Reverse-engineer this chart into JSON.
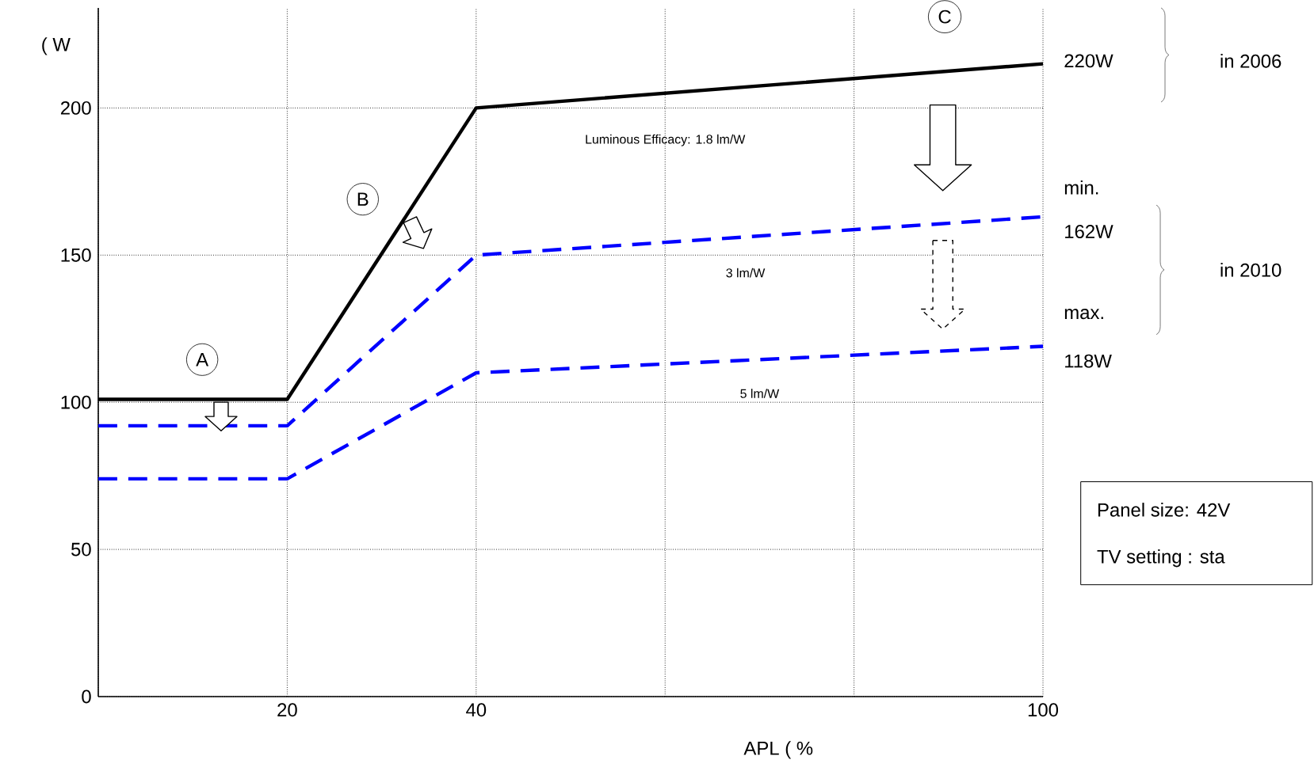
{
  "chart_data": {
    "type": "line",
    "xlabel": "APL ( %",
    "ylabel": "( W",
    "x": [
      0,
      20,
      40,
      100
    ],
    "series": [
      {
        "color": "#000000",
        "line_style": "solid",
        "values": [
          101,
          101,
          200,
          215
        ]
      },
      {
        "color": "#0000ff",
        "line_style": "dashed",
        "values": [
          92,
          92,
          150,
          163
        ]
      },
      {
        "color": "#0000ff",
        "line_style": "dashed",
        "values": [
          74,
          74,
          110,
          119
        ]
      }
    ],
    "xlim": [
      0,
      100
    ],
    "ylim": [
      0,
      234
    ],
    "xticks": [
      {
        "value": 0,
        "label": null
      },
      20,
      40,
      {
        "value": 60,
        "label": null
      },
      {
        "value": 80,
        "label": null
      },
      100
    ],
    "yticks": [
      0,
      50,
      100,
      150,
      200
    ],
    "grid": true,
    "marker": "none",
    "annotations": [
      "Luminous Efficacy: 1.8 lm/W",
      "3 lm/W",
      "5 lm/W",
      "A",
      "B",
      "C",
      "220W",
      "in 2006",
      "min.",
      "162W",
      "in 2010",
      "max.",
      "118W",
      "Panel size: 42V",
      "TV setting : sta"
    ]
  }
}
